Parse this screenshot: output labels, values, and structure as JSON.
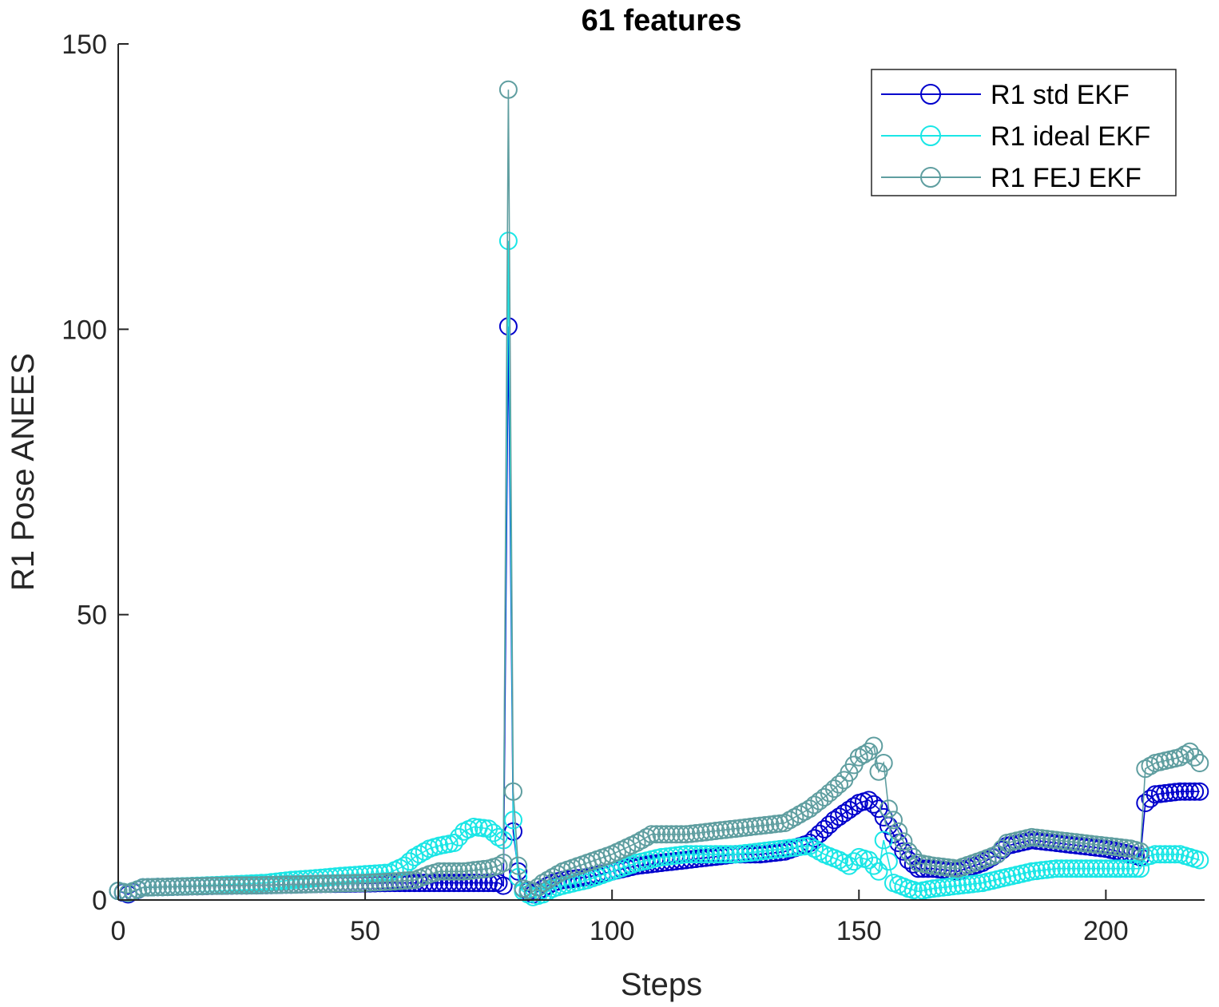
{
  "chart_data": {
    "type": "line",
    "title": "61 features",
    "xlabel": "Steps",
    "ylabel": "R1 Pose ANEES",
    "xlim": [
      0,
      220
    ],
    "ylim": [
      0,
      150
    ],
    "xticks": [
      0,
      50,
      100,
      150,
      200
    ],
    "yticks": [
      0,
      50,
      100,
      150
    ],
    "grid": false,
    "legend_position": "top-right",
    "marker": "circle",
    "series": [
      {
        "name": "R1 std EKF",
        "color": "#0000cc",
        "points": [
          [
            0,
            1.6
          ],
          [
            2,
            1
          ],
          [
            5,
            2.2
          ],
          [
            10,
            2.3
          ],
          [
            20,
            2.5
          ],
          [
            30,
            2.6
          ],
          [
            40,
            2.8
          ],
          [
            50,
            2.9
          ],
          [
            55,
            3
          ],
          [
            60,
            3
          ],
          [
            65,
            3
          ],
          [
            70,
            3
          ],
          [
            75,
            3
          ],
          [
            77,
            3
          ],
          [
            78,
            2.5
          ],
          [
            79,
            100.5
          ],
          [
            80,
            12
          ],
          [
            81,
            5
          ],
          [
            82,
            2
          ],
          [
            84,
            1
          ],
          [
            86,
            2
          ],
          [
            88,
            3
          ],
          [
            90,
            3.5
          ],
          [
            95,
            4
          ],
          [
            100,
            5
          ],
          [
            105,
            6
          ],
          [
            110,
            6.5
          ],
          [
            115,
            7
          ],
          [
            120,
            7.5
          ],
          [
            125,
            8
          ],
          [
            130,
            8
          ],
          [
            135,
            8.5
          ],
          [
            140,
            10
          ],
          [
            145,
            14
          ],
          [
            150,
            17
          ],
          [
            152,
            17.5
          ],
          [
            154,
            16
          ],
          [
            156,
            13
          ],
          [
            158,
            10
          ],
          [
            160,
            7
          ],
          [
            162,
            5.5
          ],
          [
            165,
            5.5
          ],
          [
            170,
            5
          ],
          [
            175,
            6.5
          ],
          [
            178,
            8
          ],
          [
            180,
            9.5
          ],
          [
            185,
            10.5
          ],
          [
            190,
            10
          ],
          [
            195,
            9.5
          ],
          [
            200,
            9
          ],
          [
            205,
            8
          ],
          [
            207,
            7.5
          ],
          [
            208,
            17
          ],
          [
            210,
            18.5
          ],
          [
            215,
            19
          ],
          [
            219,
            19
          ]
        ]
      },
      {
        "name": "R1 ideal EKF",
        "color": "#1ae6e6",
        "points": [
          [
            0,
            1.6
          ],
          [
            2,
            1.2
          ],
          [
            5,
            2.2
          ],
          [
            10,
            2.3
          ],
          [
            20,
            2.6
          ],
          [
            30,
            3
          ],
          [
            35,
            3.5
          ],
          [
            40,
            3.8
          ],
          [
            45,
            4.2
          ],
          [
            50,
            4.5
          ],
          [
            55,
            4.8
          ],
          [
            58,
            6
          ],
          [
            60,
            7.5
          ],
          [
            63,
            9
          ],
          [
            65,
            9.5
          ],
          [
            68,
            10
          ],
          [
            70,
            12
          ],
          [
            72,
            12.8
          ],
          [
            75,
            12.5
          ],
          [
            77,
            11
          ],
          [
            78,
            10.5
          ],
          [
            79,
            115.5
          ],
          [
            80,
            14
          ],
          [
            81,
            4
          ],
          [
            82,
            1.5
          ],
          [
            84,
            0.5
          ],
          [
            86,
            1
          ],
          [
            88,
            2
          ],
          [
            90,
            2.5
          ],
          [
            95,
            3.5
          ],
          [
            100,
            5
          ],
          [
            105,
            6.5
          ],
          [
            110,
            7.5
          ],
          [
            115,
            8
          ],
          [
            120,
            8
          ],
          [
            125,
            8
          ],
          [
            130,
            8.5
          ],
          [
            135,
            9
          ],
          [
            140,
            9.5
          ],
          [
            143,
            8
          ],
          [
            146,
            7
          ],
          [
            148,
            6
          ],
          [
            150,
            7.5
          ],
          [
            152,
            7
          ],
          [
            154,
            5
          ],
          [
            155,
            10.5
          ],
          [
            157,
            3
          ],
          [
            160,
            2
          ],
          [
            162,
            1.5
          ],
          [
            165,
            2
          ],
          [
            170,
            2.5
          ],
          [
            175,
            3
          ],
          [
            180,
            4
          ],
          [
            185,
            5
          ],
          [
            190,
            5.5
          ],
          [
            195,
            5.5
          ],
          [
            200,
            5.5
          ],
          [
            205,
            5.5
          ],
          [
            207,
            5.5
          ],
          [
            208,
            7.5
          ],
          [
            210,
            8
          ],
          [
            215,
            8
          ],
          [
            219,
            7
          ]
        ]
      },
      {
        "name": "R1 FEJ EKF",
        "color": "#5f9ea0",
        "points": [
          [
            0,
            1.6
          ],
          [
            2,
            1.2
          ],
          [
            5,
            2.2
          ],
          [
            10,
            2.3
          ],
          [
            20,
            2.5
          ],
          [
            30,
            2.6
          ],
          [
            40,
            2.8
          ],
          [
            50,
            3
          ],
          [
            55,
            3.2
          ],
          [
            60,
            3.5
          ],
          [
            63,
            4.5
          ],
          [
            65,
            5
          ],
          [
            70,
            5
          ],
          [
            75,
            5.5
          ],
          [
            77,
            6
          ],
          [
            78,
            6.5
          ],
          [
            79,
            142
          ],
          [
            80,
            19
          ],
          [
            81,
            6
          ],
          [
            82,
            2
          ],
          [
            84,
            1.5
          ],
          [
            86,
            3
          ],
          [
            88,
            4
          ],
          [
            90,
            5
          ],
          [
            95,
            6.5
          ],
          [
            100,
            8
          ],
          [
            105,
            10
          ],
          [
            108,
            11.5
          ],
          [
            110,
            11.5
          ],
          [
            115,
            11.5
          ],
          [
            120,
            12
          ],
          [
            125,
            12.5
          ],
          [
            130,
            13
          ],
          [
            135,
            13.5
          ],
          [
            138,
            15
          ],
          [
            140,
            16
          ],
          [
            143,
            18
          ],
          [
            145,
            19.5
          ],
          [
            147,
            21
          ],
          [
            150,
            25
          ],
          [
            152,
            26
          ],
          [
            153,
            27
          ],
          [
            154,
            22.5
          ],
          [
            155,
            24
          ],
          [
            156,
            16
          ],
          [
            158,
            12
          ],
          [
            160,
            8.5
          ],
          [
            162,
            6.5
          ],
          [
            165,
            6
          ],
          [
            170,
            5.5
          ],
          [
            175,
            7
          ],
          [
            178,
            8
          ],
          [
            180,
            10
          ],
          [
            185,
            11
          ],
          [
            190,
            10.5
          ],
          [
            195,
            10
          ],
          [
            200,
            9.5
          ],
          [
            205,
            9
          ],
          [
            207,
            8.5
          ],
          [
            208,
            23
          ],
          [
            210,
            24
          ],
          [
            215,
            25
          ],
          [
            217,
            26
          ],
          [
            219,
            24
          ]
        ]
      }
    ]
  }
}
